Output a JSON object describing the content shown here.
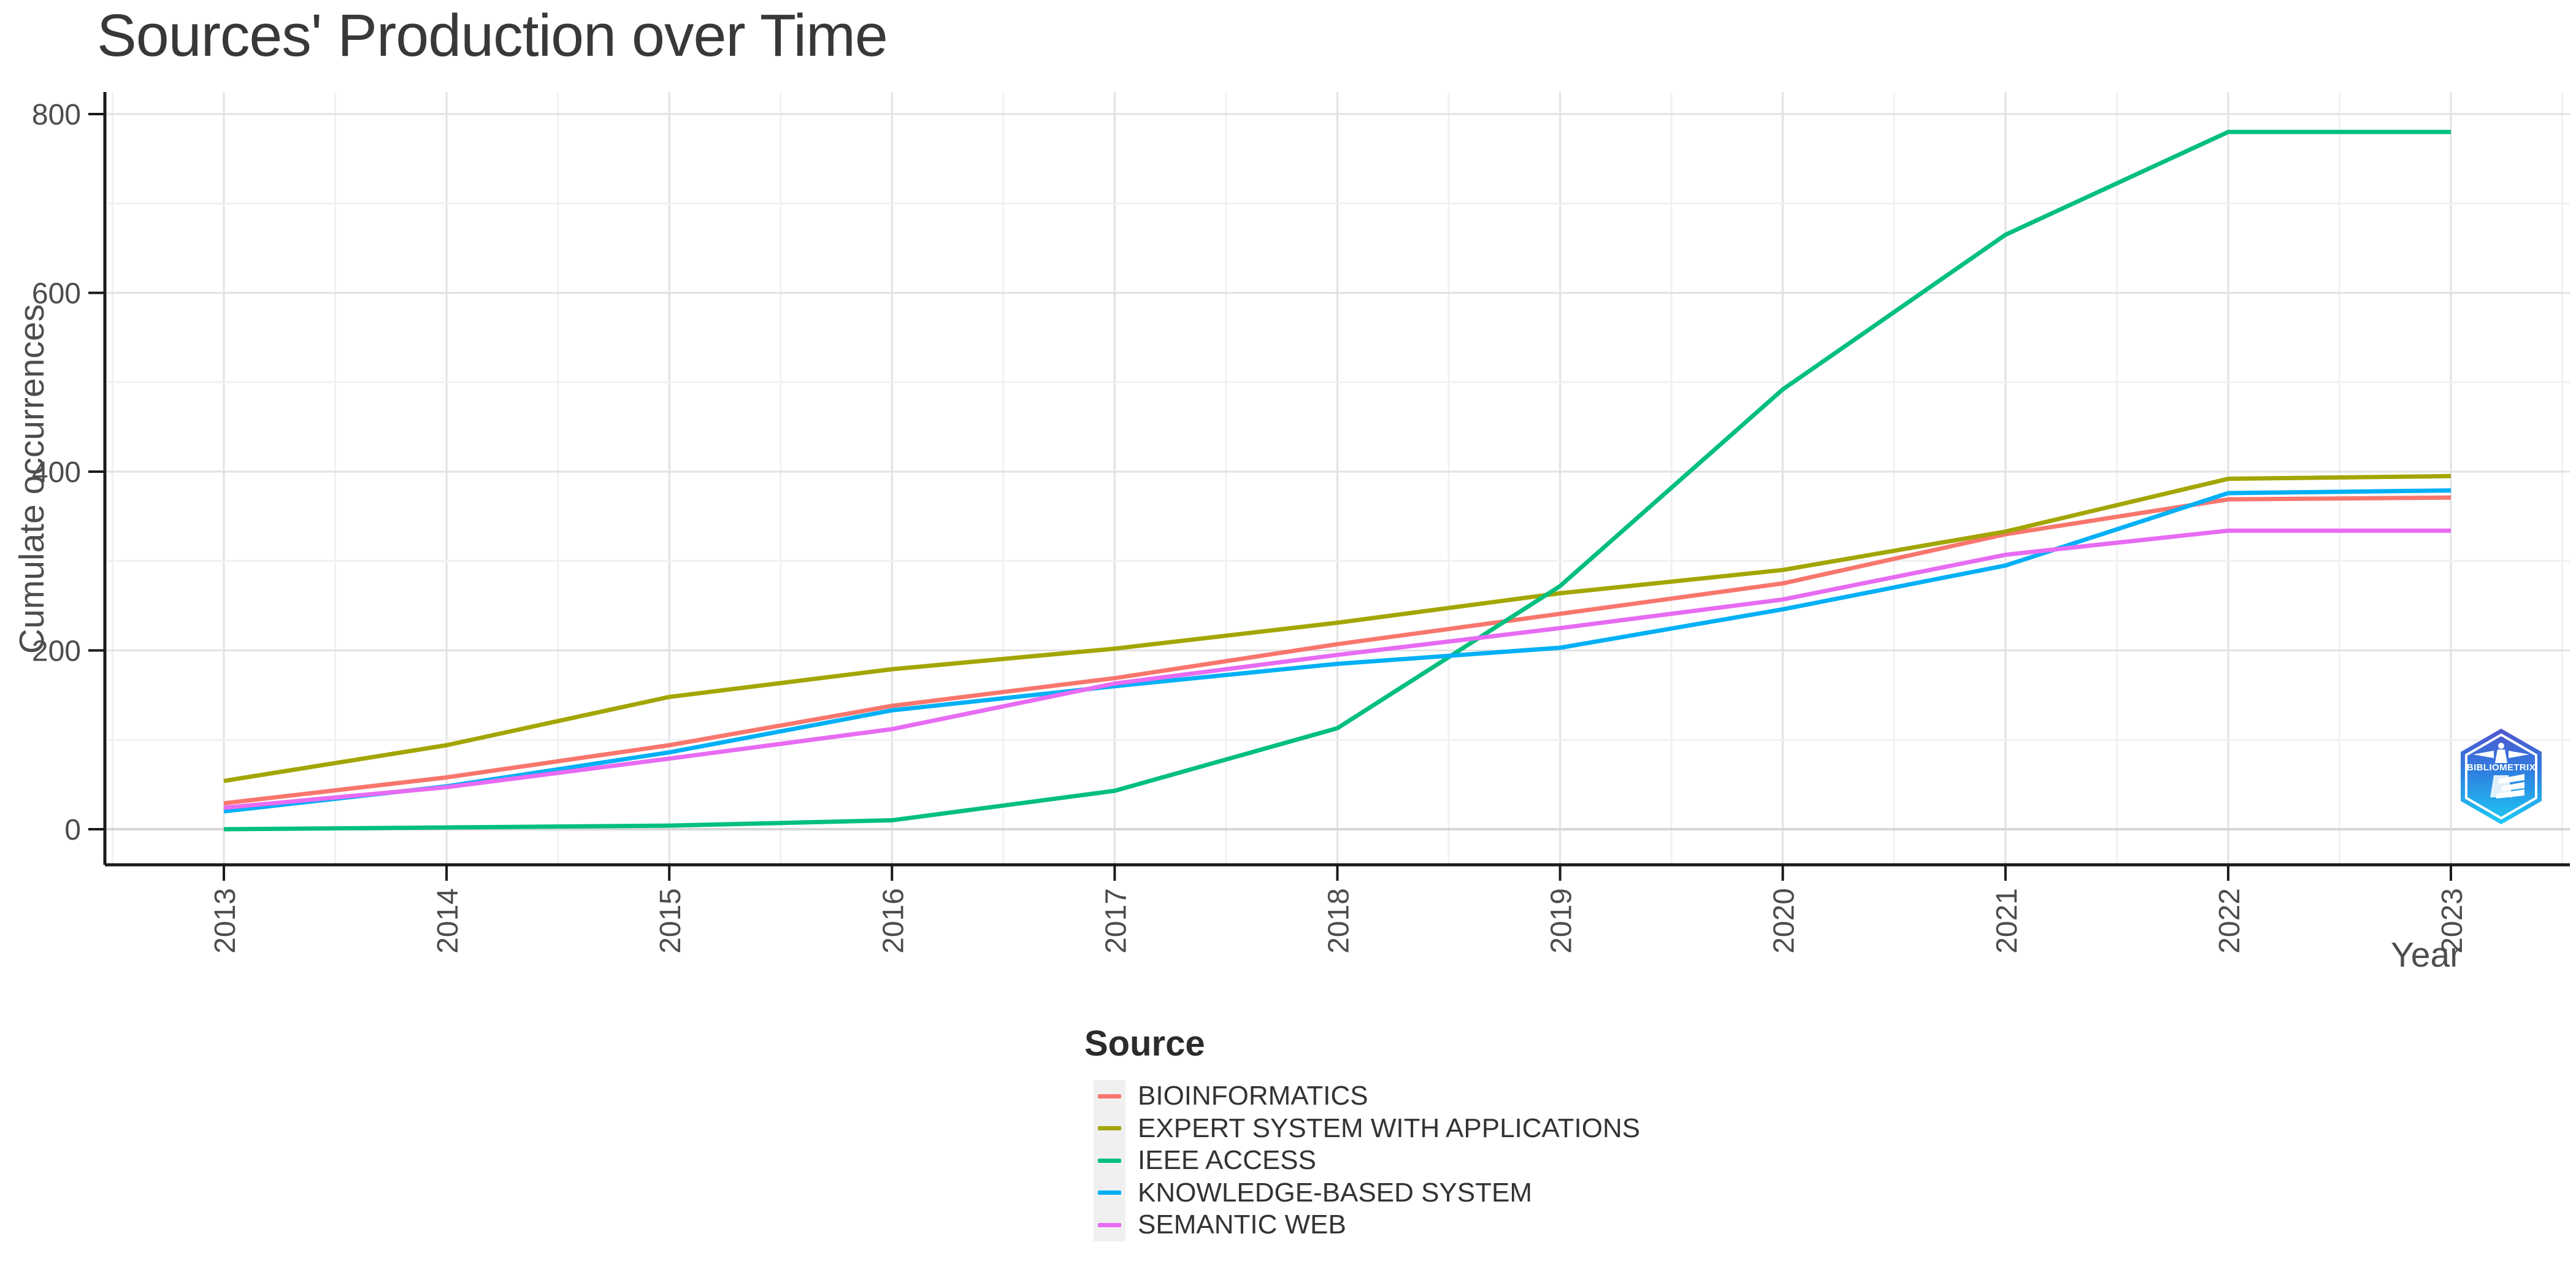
{
  "title": "Sources' Production over Time",
  "axes": {
    "x_label": "Year",
    "y_label": "Cumulate occurrences"
  },
  "legend": {
    "title": "Source"
  },
  "watermark": {
    "text": "BIBLIOMETRIX"
  },
  "colors": {
    "grid_major": "#E2E2E2",
    "grid_minor": "#F1F1F1",
    "zero_line": "#D6D6D6",
    "axis_line": "#1a1a1a",
    "tick_label": "#4d4d4d",
    "logo_gradient_top": "#4f55cf",
    "logo_gradient_mid": "#2f7fe0",
    "logo_gradient_bottom": "#1ecbf4"
  },
  "chart_data": {
    "type": "line",
    "title": "Sources' Production over Time",
    "xlabel": "Year",
    "ylabel": "Cumulate occurrences",
    "x": [
      2013,
      2014,
      2015,
      2016,
      2017,
      2018,
      2019,
      2020,
      2021,
      2022,
      2023
    ],
    "ylim": [
      0,
      800
    ],
    "y_major_ticks": [
      0,
      200,
      400,
      600,
      800
    ],
    "y_minor_gridlines": [
      100,
      300,
      500,
      700
    ],
    "grid": true,
    "legend_position": "bottom-center",
    "legend_title": "Source",
    "series": [
      {
        "name": "BIOINFORMATICS",
        "color": "#F8766D",
        "values": [
          29,
          58,
          94,
          138,
          169,
          207,
          241,
          275,
          330,
          369,
          371
        ]
      },
      {
        "name": "EXPERT SYSTEM WITH APPLICATIONS",
        "color": "#A3A500",
        "values": [
          54,
          94,
          148,
          179,
          202,
          231,
          264,
          290,
          333,
          392,
          395
        ]
      },
      {
        "name": "IEEE ACCESS",
        "color": "#00BF7D",
        "values": [
          0,
          2,
          4,
          10,
          43,
          113,
          272,
          492,
          665,
          780,
          780
        ]
      },
      {
        "name": "KNOWLEDGE-BASED SYSTEM",
        "color": "#00B0F6",
        "values": [
          20,
          48,
          86,
          133,
          160,
          185,
          203,
          246,
          295,
          376,
          379
        ]
      },
      {
        "name": "SEMANTIC WEB",
        "color": "#E76BF3",
        "values": [
          24,
          47,
          79,
          112,
          163,
          195,
          225,
          257,
          307,
          334,
          334
        ]
      }
    ]
  }
}
